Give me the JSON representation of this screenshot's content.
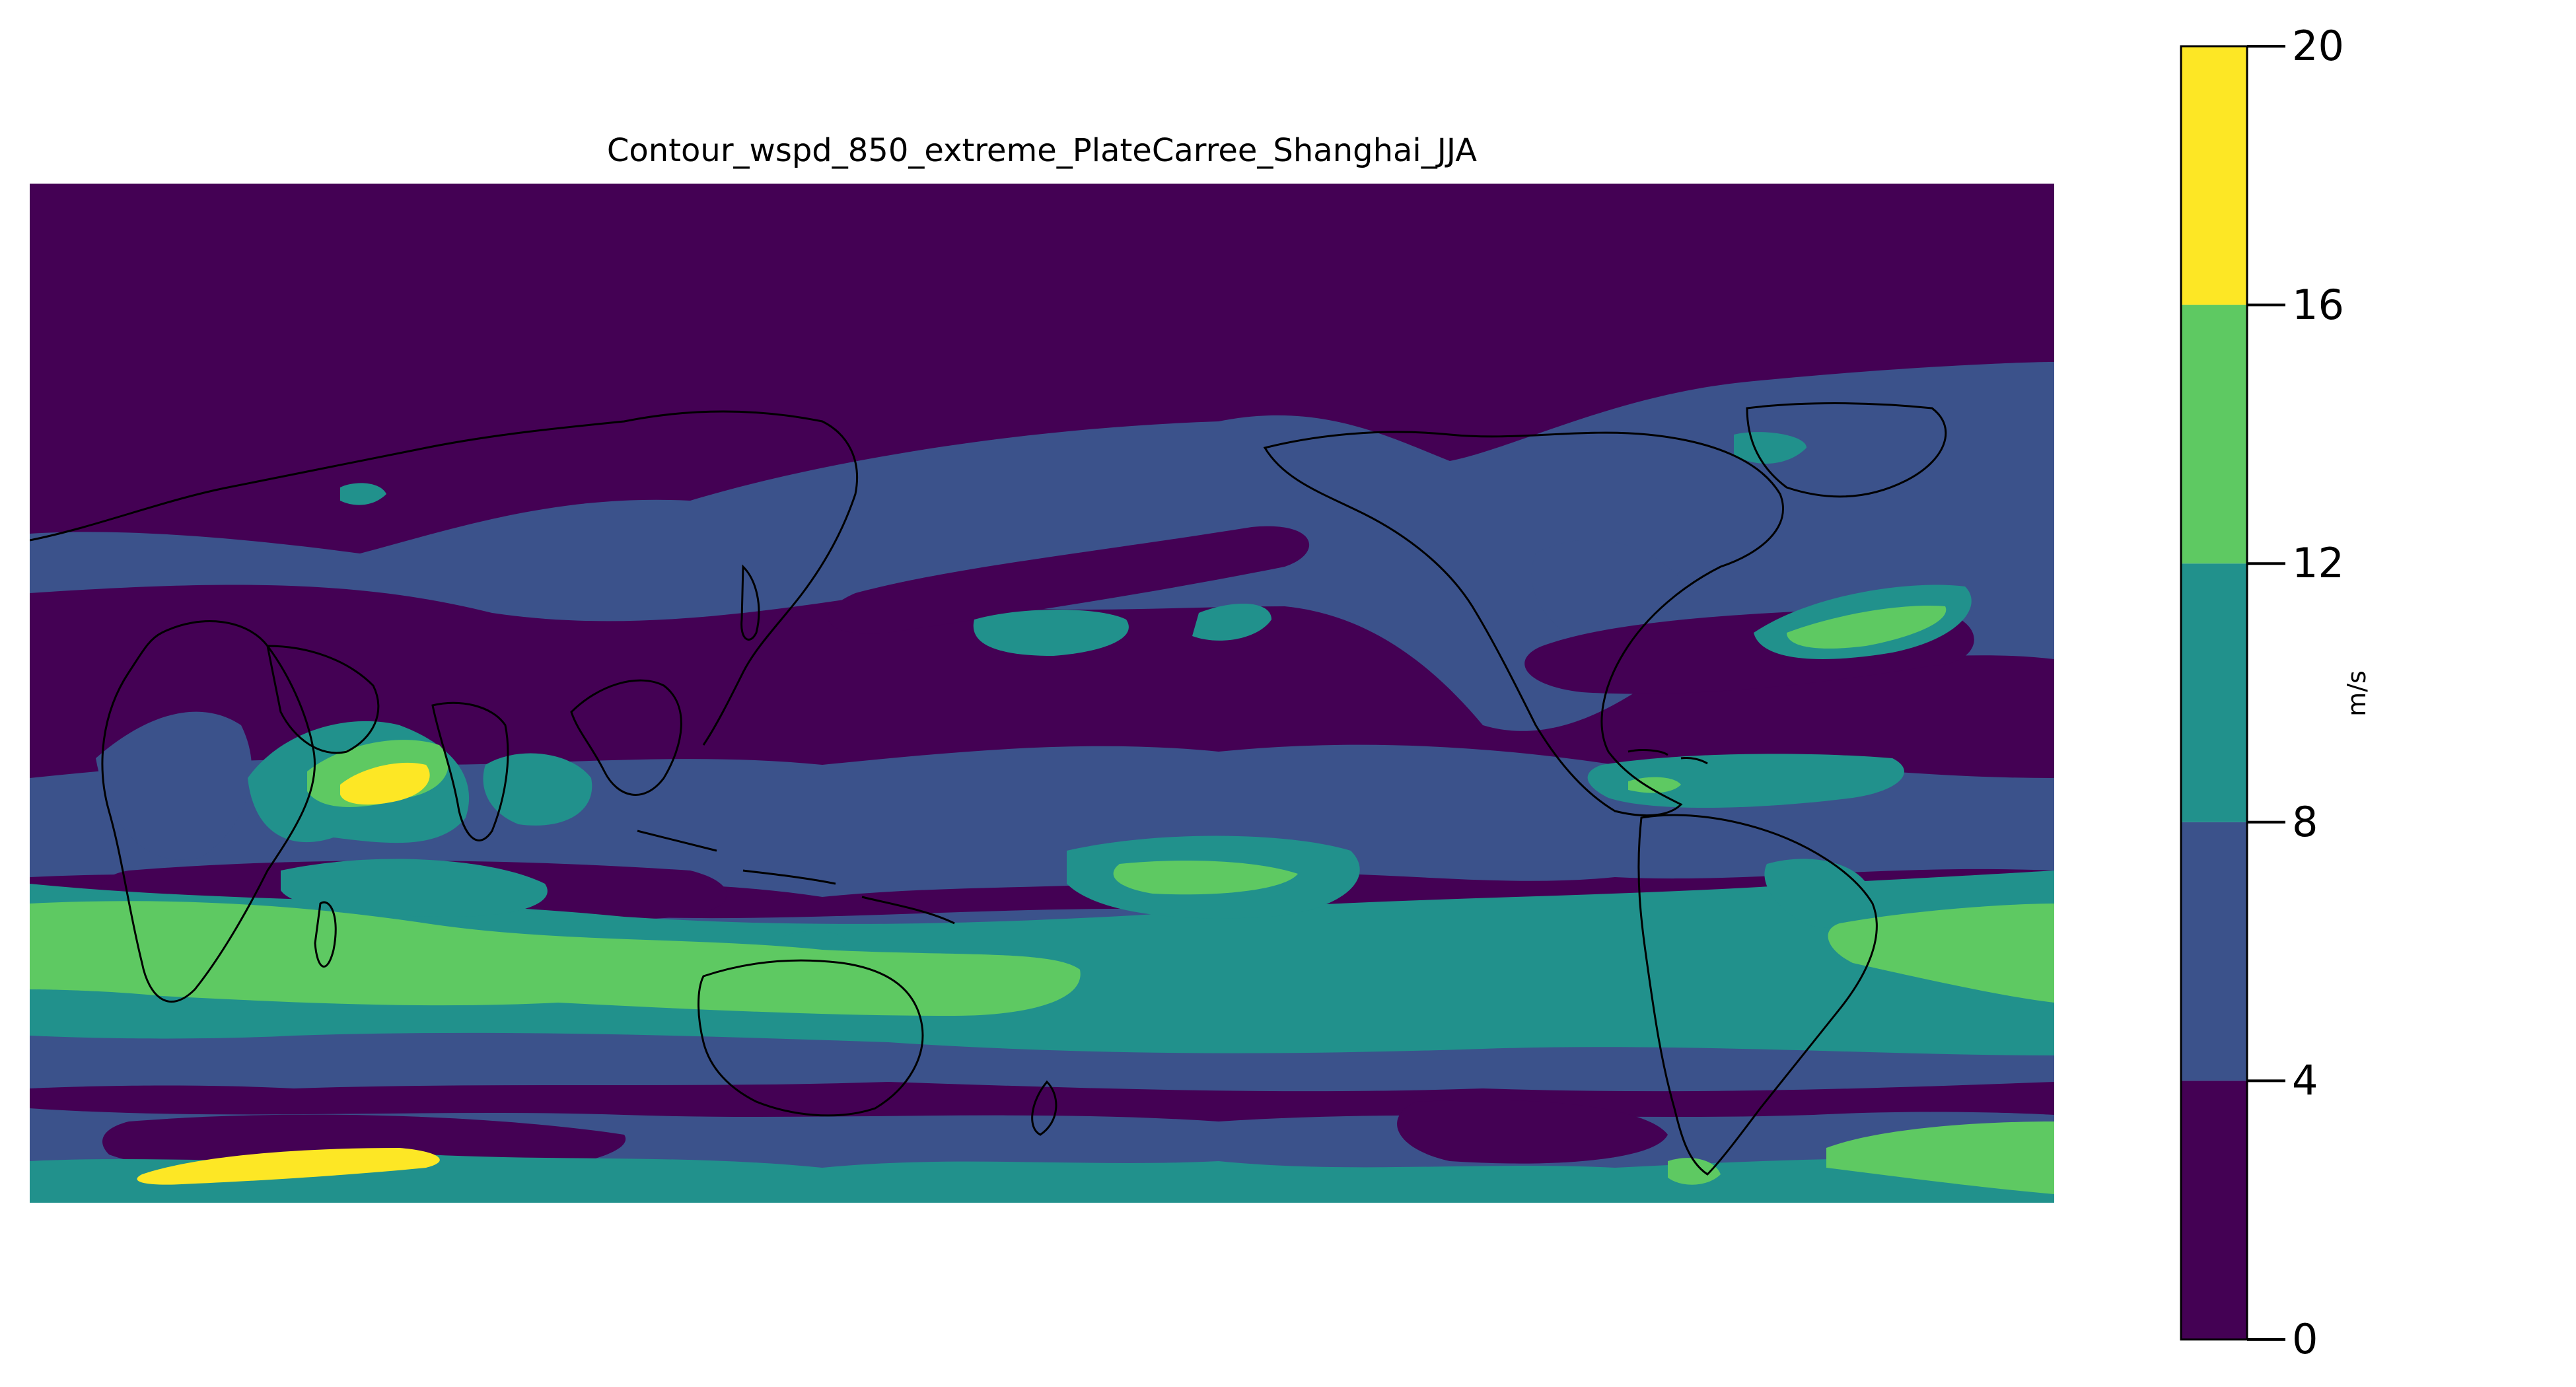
{
  "title": "Contour_wspd_850_extreme_PlateCarree_Shanghai_JJA",
  "chart_data": {
    "type": "filled-contour-map",
    "projection": "PlateCarree",
    "title": "Contour_wspd_850_extreme_PlateCarree_Shanghai_JJA",
    "extent": {
      "lon": [
        -180,
        180
      ],
      "lat": [
        -90,
        90
      ]
    },
    "central_longitude": 180,
    "colorbar": {
      "unit": "m/s",
      "levels": [
        0,
        4,
        8,
        12,
        16,
        20
      ],
      "tick_labels": [
        "0",
        "4",
        "8",
        "12",
        "16",
        "20"
      ],
      "colors": [
        "#440154",
        "#3b528b",
        "#21918c",
        "#5ec962",
        "#fde725"
      ],
      "position": "right"
    },
    "features": [
      "coastlines"
    ]
  },
  "colors": {
    "band_0_4": "#440154",
    "band_4_8": "#3b528b",
    "band_8_12": "#21918c",
    "band_12_16": "#5ec962",
    "band_16_20": "#fde725",
    "coastline": "#000000"
  }
}
